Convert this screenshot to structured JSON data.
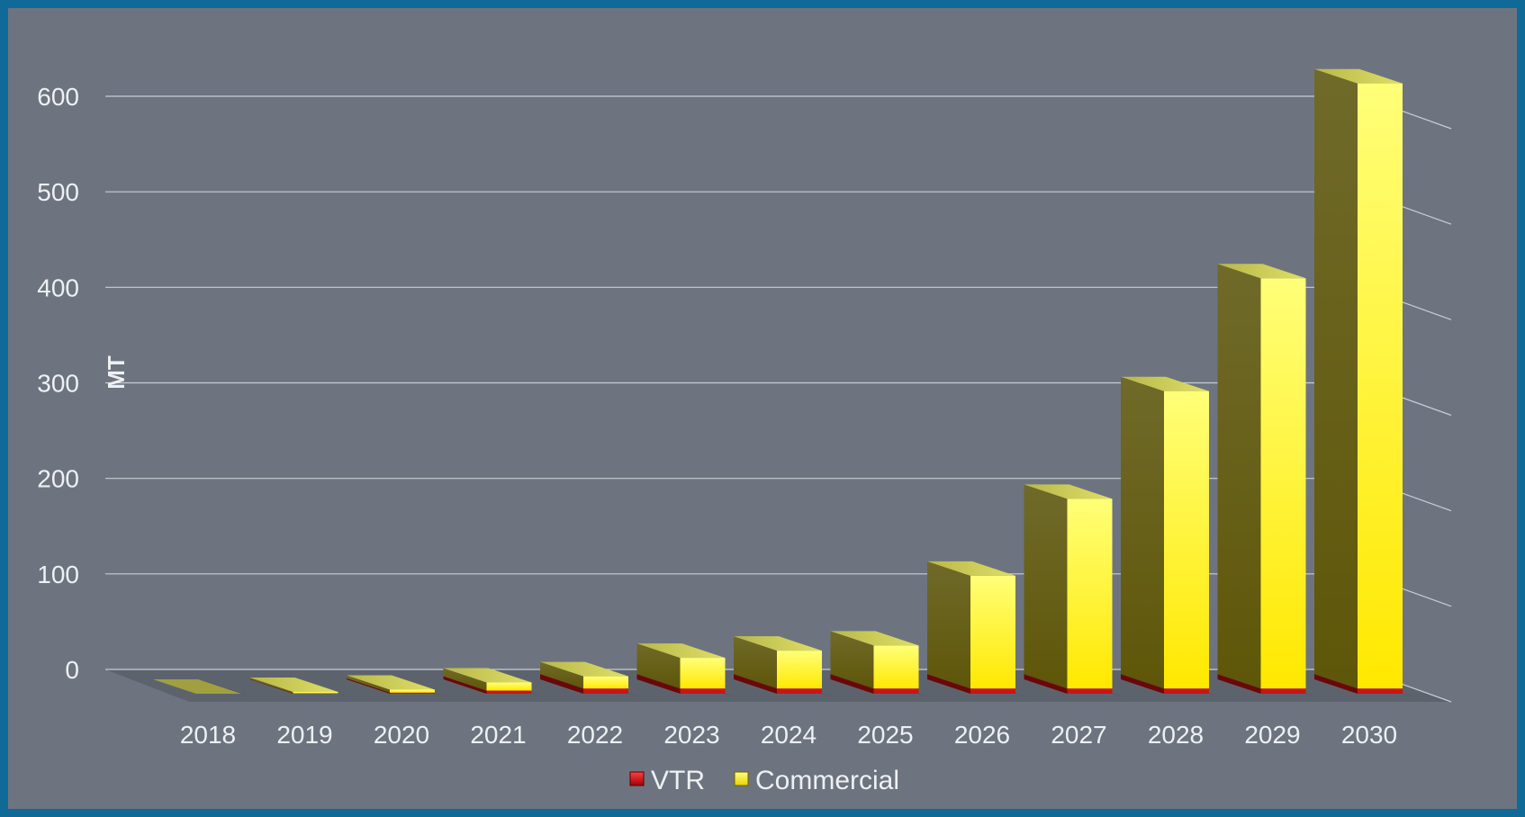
{
  "chart_data": {
    "type": "bar",
    "stacked": true,
    "categories": [
      "2018",
      "2019",
      "2020",
      "2021",
      "2022",
      "2023",
      "2024",
      "2025",
      "2026",
      "2027",
      "2028",
      "2029",
      "2030"
    ],
    "series": [
      {
        "name": "VTR",
        "color": "#c8141c",
        "values": [
          0,
          0.3,
          1,
          3,
          5,
          5,
          5,
          5,
          5,
          5,
          5,
          5,
          5
        ]
      },
      {
        "name": "Commercial",
        "color": "#ffe81a",
        "values": [
          0,
          1.5,
          3,
          8,
          12,
          30,
          37,
          42,
          110,
          185,
          290,
          400,
          590
        ]
      }
    ],
    "ylabel": "MT",
    "ylim": [
      0,
      600
    ],
    "yticks": [
      0,
      100,
      200,
      300,
      400,
      500,
      600
    ],
    "grid": true,
    "legend": "bottom",
    "style": "3d-bars"
  }
}
